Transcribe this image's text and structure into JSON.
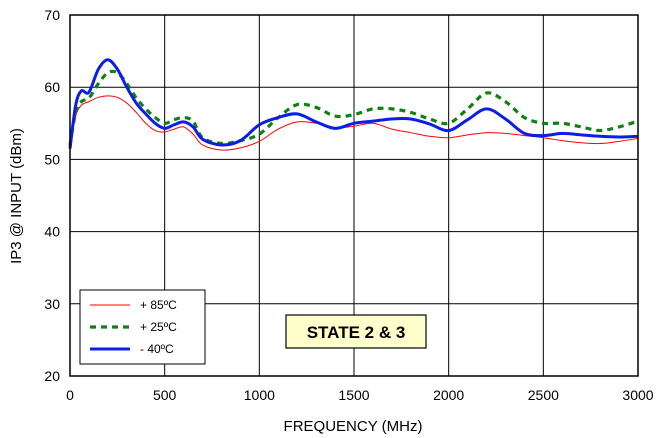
{
  "chart_data": {
    "type": "line",
    "xlabel": "FREQUENCY (MHz)",
    "ylabel": "IP3 @ INPUT (dBm)",
    "xlim": [
      0,
      3000
    ],
    "ylim": [
      20,
      70
    ],
    "xticks": [
      "0",
      "500",
      "1000",
      "1500",
      "2000",
      "2500",
      "3000"
    ],
    "yticks": [
      "20",
      "30",
      "40",
      "50",
      "60",
      "70"
    ],
    "grid": true,
    "legend_position": "bottom-left",
    "annotation": "STATE 2 & 3",
    "series": [
      {
        "name": "+ 85ºC",
        "color": "#ff0000",
        "style": "thin-solid",
        "x": [
          0,
          30,
          60,
          100,
          150,
          200,
          250,
          300,
          350,
          400,
          450,
          500,
          550,
          600,
          650,
          700,
          800,
          900,
          1000,
          1100,
          1200,
          1300,
          1400,
          1500,
          1600,
          1700,
          1800,
          1900,
          2000,
          2100,
          2200,
          2300,
          2400,
          2500,
          2600,
          2700,
          2800,
          2900,
          3000
        ],
        "y": [
          52,
          56,
          57.5,
          58,
          58.6,
          58.8,
          58.6,
          57.8,
          56.5,
          55,
          54,
          53.8,
          54.2,
          54.5,
          53.5,
          52,
          51.3,
          51.6,
          52.5,
          54.2,
          55.2,
          55.0,
          54.4,
          54.6,
          55.0,
          54.2,
          53.7,
          53.2,
          53.0,
          53.4,
          53.7,
          53.6,
          53.3,
          53.0,
          52.6,
          52.3,
          52.2,
          52.5,
          52.9
        ]
      },
      {
        "name": "+ 25ºC",
        "color": "#108010",
        "style": "dashed",
        "x": [
          0,
          30,
          60,
          100,
          150,
          200,
          250,
          300,
          350,
          400,
          450,
          500,
          550,
          600,
          650,
          700,
          800,
          900,
          1000,
          1100,
          1200,
          1300,
          1400,
          1500,
          1600,
          1700,
          1800,
          1900,
          2000,
          2100,
          2200,
          2300,
          2400,
          2500,
          2600,
          2700,
          2800,
          2900,
          3000
        ],
        "y": [
          52,
          56.5,
          58,
          58.5,
          60.5,
          62,
          62,
          60.5,
          58.5,
          57,
          55.8,
          55,
          55.5,
          55.8,
          55.3,
          53,
          52.2,
          52.6,
          53.5,
          55.8,
          57.6,
          57.2,
          56,
          56.2,
          57.0,
          57.0,
          56.5,
          55.6,
          55.0,
          57.0,
          59.2,
          58.0,
          55.8,
          55.0,
          55.0,
          54.5,
          54.0,
          54.5,
          55.3
        ]
      },
      {
        "name": "- 40ºC",
        "color": "#0a1ee6",
        "style": "thick-solid",
        "x": [
          0,
          30,
          60,
          100,
          150,
          200,
          250,
          300,
          350,
          400,
          450,
          500,
          550,
          600,
          650,
          700,
          800,
          900,
          1000,
          1100,
          1200,
          1300,
          1400,
          1500,
          1600,
          1700,
          1800,
          1900,
          2000,
          2100,
          2200,
          2300,
          2400,
          2500,
          2600,
          2700,
          2800,
          2900,
          3000
        ],
        "y": [
          51.5,
          57.5,
          59.5,
          59.3,
          62.5,
          63.8,
          62.5,
          60,
          57.8,
          56.3,
          55,
          54.3,
          54.8,
          55.2,
          54.5,
          52.8,
          52.0,
          52.6,
          54.8,
          55.8,
          56.3,
          55.2,
          54.3,
          55.0,
          55.3,
          55.6,
          55.6,
          54.9,
          54.0,
          55.5,
          57.0,
          55.6,
          53.6,
          53.3,
          53.6,
          53.4,
          53.2,
          53.1,
          53.2
        ]
      }
    ]
  }
}
